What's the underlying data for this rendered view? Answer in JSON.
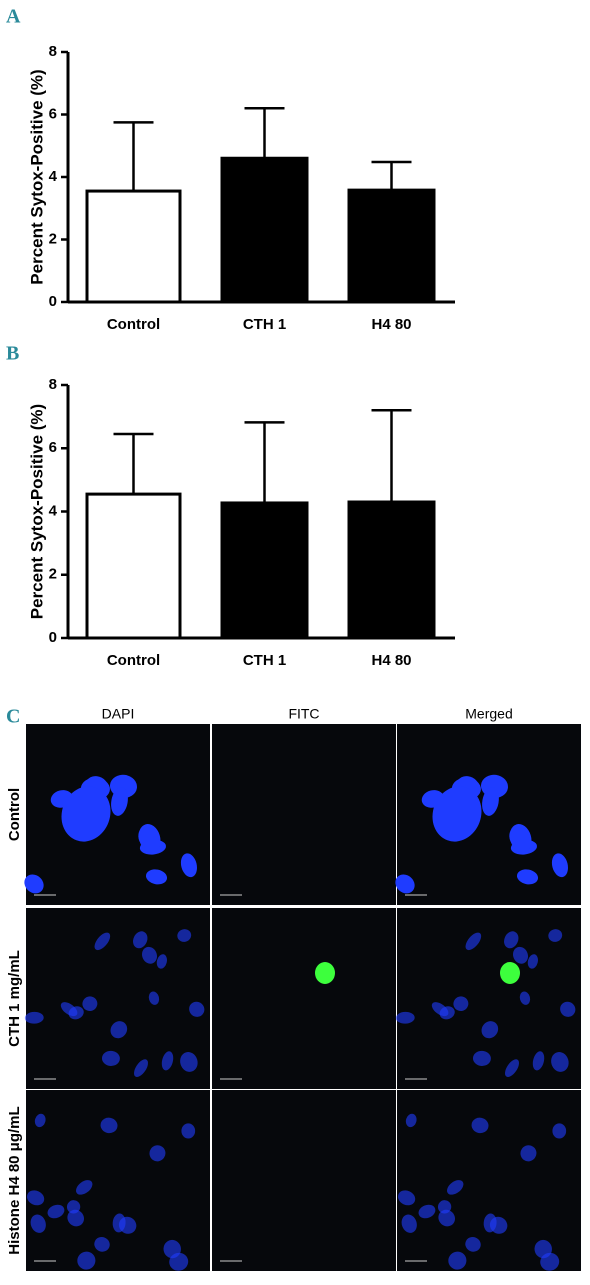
{
  "panel_labels": [
    "A",
    "B",
    "C"
  ],
  "chart_data": [
    {
      "type": "bar",
      "y_label": "Percent Sytox-Positive (%)",
      "categories": [
        "Control",
        "CTH 1",
        "H4 80"
      ],
      "values": [
        3.55,
        4.6,
        3.58
      ],
      "errors": [
        2.2,
        1.6,
        0.9
      ],
      "colors": [
        "#ffffff",
        "#000000",
        "#000000"
      ],
      "ylim": [
        0,
        8
      ],
      "yticks": [
        0,
        2,
        4,
        6,
        8
      ]
    },
    {
      "type": "bar",
      "y_label": "Percent Sytox-Positive (%)",
      "categories": [
        "Control",
        "CTH 1",
        "H4 80"
      ],
      "values": [
        4.55,
        4.27,
        4.3
      ],
      "errors": [
        1.9,
        2.55,
        2.9
      ],
      "colors": [
        "#ffffff",
        "#000000",
        "#000000"
      ],
      "ylim": [
        0,
        8
      ],
      "yticks": [
        0,
        2,
        4,
        6,
        8
      ]
    }
  ],
  "micrographs": {
    "columns": [
      "DAPI",
      "FITC",
      "Merged"
    ],
    "rows": [
      "Control",
      "CTH 1 mg/mL",
      "Histone H4 80 μg/mL"
    ]
  }
}
